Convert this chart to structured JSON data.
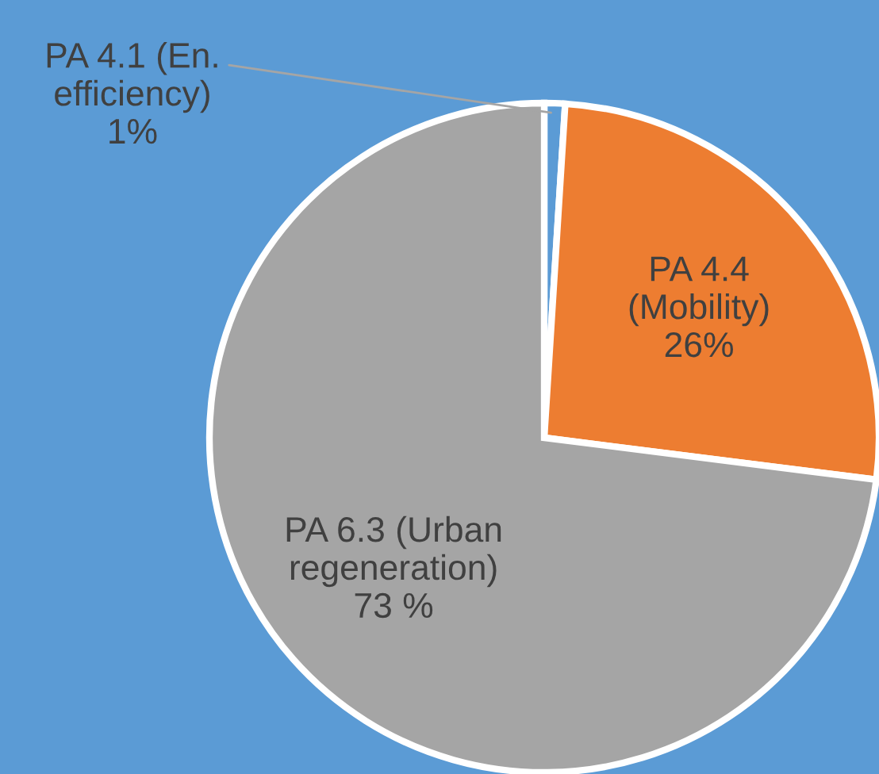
{
  "chart_data": {
    "type": "pie",
    "categories": [
      "PA 4.1 (En.\nefficiency)",
      "PA 4.4\n(Mobility)",
      "PA 6.3 (Urban\nregeneration)"
    ],
    "values": [
      1,
      26,
      73
    ],
    "colors": [
      "#5b9bd5",
      "#ed7d31",
      "#a5a5a5"
    ],
    "value_labels": [
      "1%",
      "26%",
      "73 %"
    ],
    "legend": false
  }
}
